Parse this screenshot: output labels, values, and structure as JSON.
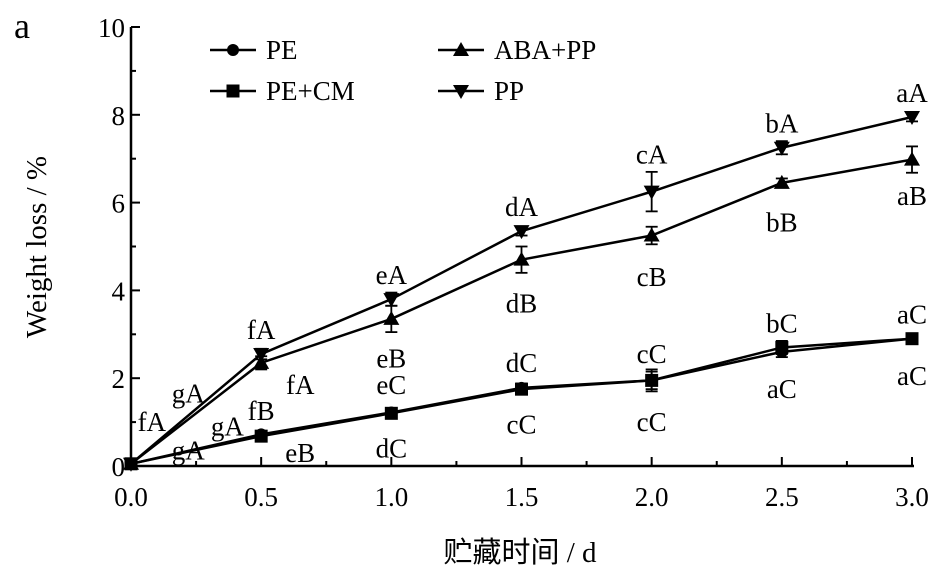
{
  "chart_data": {
    "type": "line",
    "panel_label": "a",
    "xlabel": "贮藏时间 / d",
    "ylabel": "Weight loss / %",
    "xlim": [
      0,
      3
    ],
    "ylim": [
      0,
      10
    ],
    "xticks": [
      "0.0",
      "0.5",
      "1.0",
      "1.5",
      "2.0",
      "2.5",
      "3.0"
    ],
    "yticks": [
      "0",
      "2",
      "4",
      "6",
      "8",
      "10"
    ],
    "x": [
      0,
      0.5,
      1.0,
      1.5,
      2.0,
      2.5,
      3.0
    ],
    "grid": false,
    "legend": {
      "position": "top",
      "columns": 2
    },
    "series": [
      {
        "name": "PE",
        "marker": "circle",
        "values": [
          0.05,
          0.72,
          1.22,
          1.78,
          1.95,
          2.6,
          2.9
        ],
        "errors": [
          0,
          0.05,
          0.08,
          0.1,
          0.25,
          0.12,
          0.1
        ]
      },
      {
        "name": "PE+CM",
        "marker": "square",
        "values": [
          0.05,
          0.68,
          1.2,
          1.75,
          1.95,
          2.7,
          2.9
        ],
        "errors": [
          0,
          0.05,
          0.08,
          0.12,
          0.2,
          0.15,
          0.1
        ]
      },
      {
        "name": "ABA+PP",
        "marker": "triangle-up",
        "values": [
          0.05,
          2.35,
          3.35,
          4.7,
          5.25,
          6.45,
          6.98
        ],
        "errors": [
          0,
          0.15,
          0.3,
          0.3,
          0.2,
          0.1,
          0.3
        ]
      },
      {
        "name": "PP",
        "marker": "triangle-down",
        "values": [
          0.05,
          2.55,
          3.8,
          5.35,
          6.25,
          7.25,
          7.95
        ],
        "errors": [
          0,
          0.12,
          0.15,
          0.1,
          0.45,
          0.15,
          0.1
        ]
      }
    ],
    "annotations": [
      {
        "text": "gA",
        "x": 0.22,
        "y": 1.65
      },
      {
        "text": "fA",
        "x": 0.08,
        "y": 1.0
      },
      {
        "text": "gA",
        "x": 0.37,
        "y": 0.9
      },
      {
        "text": "gA",
        "x": 0.22,
        "y": 0.35
      },
      {
        "text": "fA",
        "x": 0.5,
        "y": 3.1
      },
      {
        "text": "fA",
        "x": 0.65,
        "y": 1.85
      },
      {
        "text": "fB",
        "x": 0.5,
        "y": 1.25
      },
      {
        "text": "eB",
        "x": 0.65,
        "y": 0.3
      },
      {
        "text": "eA",
        "x": 1.0,
        "y": 4.35
      },
      {
        "text": "eB",
        "x": 1.0,
        "y": 2.45
      },
      {
        "text": "eC",
        "x": 1.0,
        "y": 1.85
      },
      {
        "text": "dC",
        "x": 1.0,
        "y": 0.4
      },
      {
        "text": "dA",
        "x": 1.5,
        "y": 5.9
      },
      {
        "text": "dB",
        "x": 1.5,
        "y": 3.7
      },
      {
        "text": "dC",
        "x": 1.5,
        "y": 2.35
      },
      {
        "text": "cC",
        "x": 1.5,
        "y": 0.95
      },
      {
        "text": "cA",
        "x": 2.0,
        "y": 7.1
      },
      {
        "text": "cB",
        "x": 2.0,
        "y": 4.3
      },
      {
        "text": "cC",
        "x": 2.0,
        "y": 2.55
      },
      {
        "text": "cC",
        "x": 2.0,
        "y": 1.0
      },
      {
        "text": "bA",
        "x": 2.5,
        "y": 7.8
      },
      {
        "text": "bB",
        "x": 2.5,
        "y": 5.55
      },
      {
        "text": "bC",
        "x": 2.5,
        "y": 3.25
      },
      {
        "text": "aC",
        "x": 2.5,
        "y": 1.75
      },
      {
        "text": "aA",
        "x": 3.0,
        "y": 8.5
      },
      {
        "text": "aB",
        "x": 3.0,
        "y": 6.15
      },
      {
        "text": "aC",
        "x": 3.0,
        "y": 3.45
      },
      {
        "text": "aC",
        "x": 3.0,
        "y": 2.05
      }
    ]
  }
}
